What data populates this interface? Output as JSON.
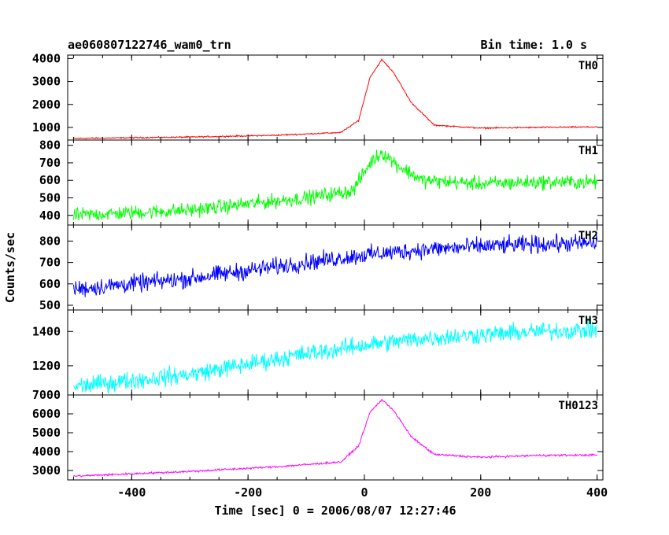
{
  "header": {
    "title": "ae060807122746_wam0_trn",
    "bin_time": "Bin time: 1.0 s"
  },
  "axes": {
    "xlabel": "Time [sec] 0 = 2006/08/07 12:27:46",
    "ylabel": "Counts/sec"
  },
  "chart_data": [
    {
      "type": "line",
      "name": "TH0",
      "color": "#ff0000",
      "xlim": [
        -510,
        410
      ],
      "ylim": [
        450,
        4150
      ],
      "x_ticks": [
        -400,
        -200,
        0,
        200,
        400
      ],
      "y_ticks": [
        1000,
        2000,
        3000,
        4000
      ],
      "profile": {
        "x": [
          -500,
          -300,
          -150,
          -40,
          -10,
          10,
          30,
          50,
          80,
          120,
          200,
          300,
          400
        ],
        "y": [
          520,
          580,
          660,
          780,
          1300,
          3200,
          3950,
          3400,
          2100,
          1100,
          970,
          1000,
          1020
        ]
      },
      "noise_amplitude": 25
    },
    {
      "type": "line",
      "name": "TH1",
      "color": "#00ff00",
      "xlim": [
        -510,
        410
      ],
      "ylim": [
        345,
        830
      ],
      "x_ticks": [
        -400,
        -200,
        0,
        200,
        400
      ],
      "y_ticks": [
        400,
        500,
        600,
        700,
        800
      ],
      "profile": {
        "x": [
          -500,
          -300,
          -100,
          -20,
          10,
          30,
          60,
          100,
          200,
          300,
          400
        ],
        "y": [
          400,
          430,
          500,
          540,
          700,
          760,
          680,
          600,
          580,
          590,
          590
        ]
      },
      "noise_amplitude": 35
    },
    {
      "type": "line",
      "name": "TH2",
      "color": "#0000ff",
      "xlim": [
        -510,
        410
      ],
      "ylim": [
        478,
        875
      ],
      "x_ticks": [
        -400,
        -200,
        0,
        200,
        400
      ],
      "y_ticks": [
        500,
        600,
        700,
        800
      ],
      "profile": {
        "x": [
          -500,
          -300,
          -100,
          0,
          100,
          200,
          300,
          400
        ],
        "y": [
          575,
          625,
          700,
          735,
          760,
          775,
          785,
          790
        ]
      },
      "noise_amplitude": 35
    },
    {
      "type": "line",
      "name": "TH3",
      "color": "#00ffff",
      "xlim": [
        -510,
        410
      ],
      "ylim": [
        1030,
        1525
      ],
      "x_ticks": [
        -400,
        -200,
        0,
        200,
        400
      ],
      "y_ticks": [
        1200,
        1400
      ],
      "profile": {
        "x": [
          -500,
          -300,
          -100,
          0,
          100,
          200,
          300,
          400
        ],
        "y": [
          1080,
          1150,
          1270,
          1320,
          1360,
          1380,
          1400,
          1410
        ]
      },
      "noise_amplitude": 45
    },
    {
      "type": "line",
      "name": "TH0123",
      "color": "#ff00ff",
      "xlim": [
        -510,
        410
      ],
      "ylim": [
        2500,
        7000
      ],
      "x_ticks": [
        -400,
        -200,
        0,
        200,
        400
      ],
      "y_ticks": [
        3000,
        4000,
        5000,
        6000,
        7000
      ],
      "profile": {
        "x": [
          -500,
          -300,
          -150,
          -40,
          -10,
          10,
          30,
          50,
          80,
          120,
          200,
          300,
          400
        ],
        "y": [
          2700,
          2950,
          3200,
          3450,
          4300,
          6100,
          6750,
          6200,
          4800,
          3850,
          3700,
          3800,
          3820
        ]
      },
      "noise_amplitude": 45
    }
  ]
}
